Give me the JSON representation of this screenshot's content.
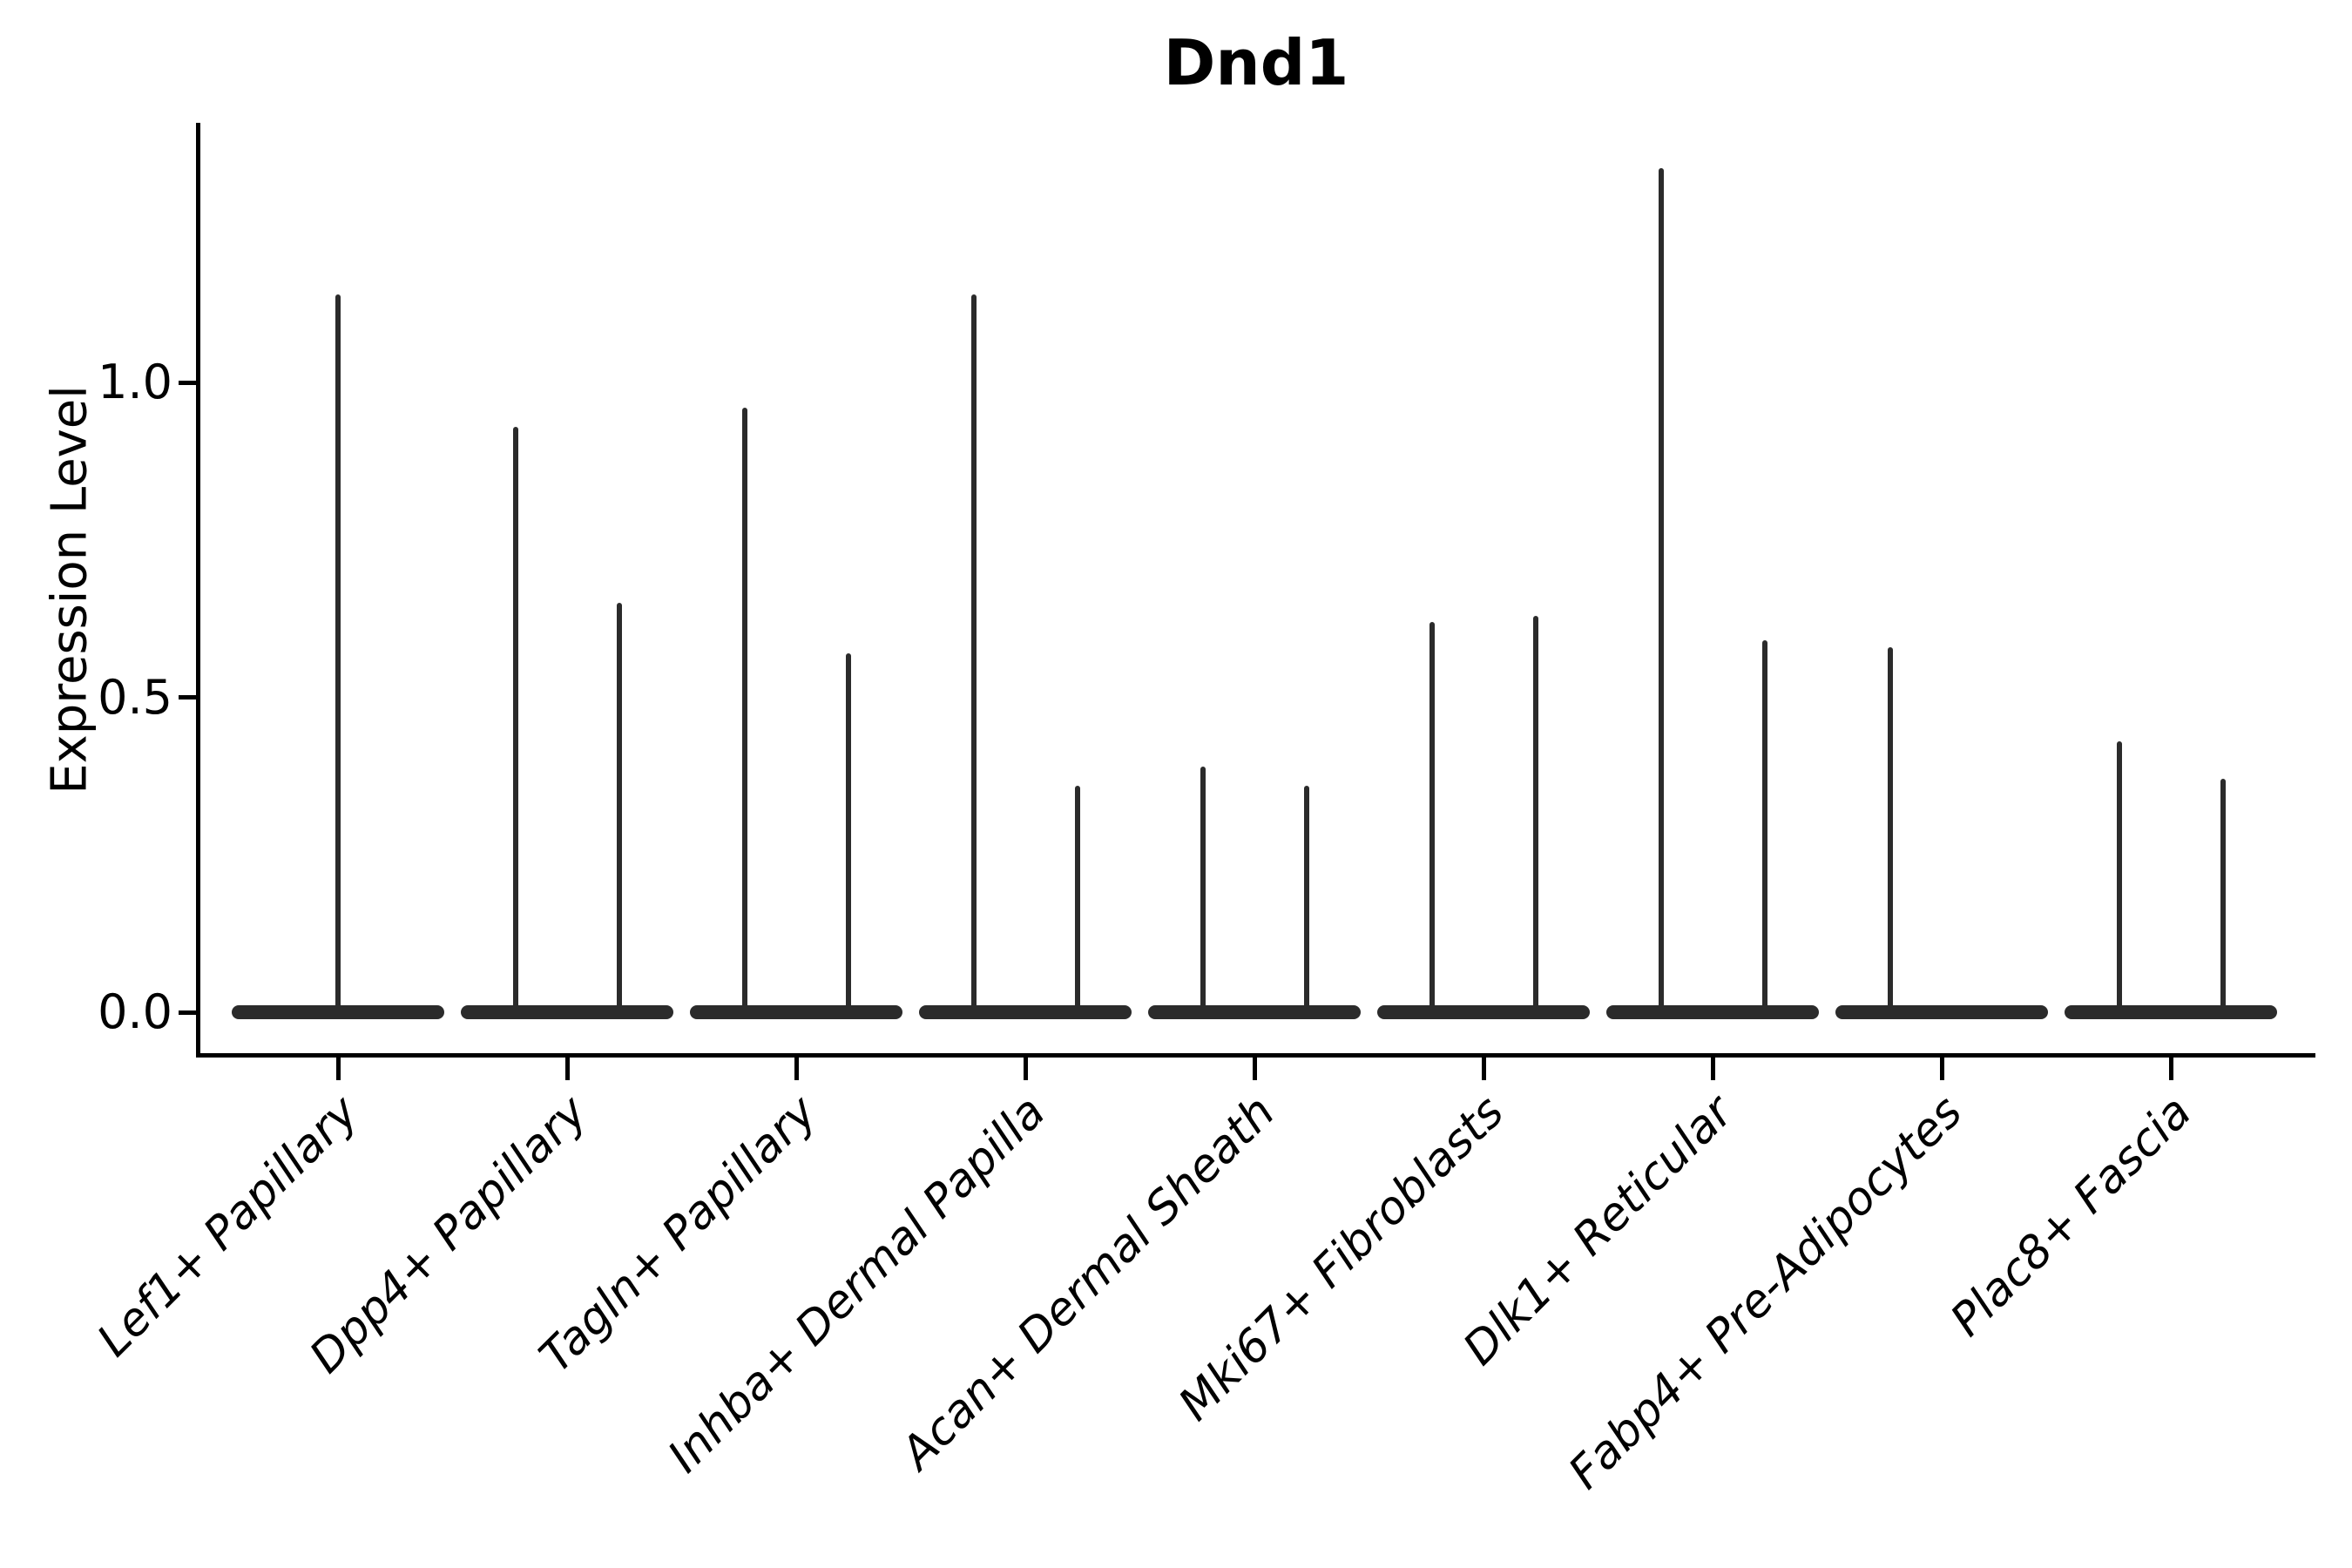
{
  "figure": {
    "title": "Dnd1",
    "background_color": "#ffffff",
    "axis_color": "#000000",
    "violin_color": "#2b2b2b"
  },
  "chart_data": {
    "type": "violin",
    "title": "Dnd1",
    "xlabel": "",
    "ylabel": "Expression Level",
    "ylim": [
      -0.07,
      1.41
    ],
    "yticks": [
      {
        "label": "0.0",
        "value": 0.0
      },
      {
        "label": "0.5",
        "value": 0.5
      },
      {
        "label": "1.0",
        "value": 1.0
      }
    ],
    "grid": false,
    "legend": null,
    "categories": [
      "Lef1+ Papillary",
      "Dpp4+ Papillary",
      "Tagln+ Papillary",
      "Inhba+ Dermal Papilla",
      "Acan+ Dermal Sheath",
      "Mki67+ Fibroblasts",
      "Dlk1+ Reticular",
      "Fabp4+ Pre-Adipocytes",
      "Plac8+ Fascia"
    ],
    "groups": [
      {
        "label": "Lef1+ Papillary",
        "spikes": [
          {
            "position": "center",
            "max": 1.14
          }
        ]
      },
      {
        "label": "Dpp4+ Papillary",
        "spikes": [
          {
            "position": "left",
            "max": 0.93
          },
          {
            "position": "right",
            "max": 0.65
          }
        ]
      },
      {
        "label": "Tagln+ Papillary",
        "spikes": [
          {
            "position": "left",
            "max": 0.96
          },
          {
            "position": "right",
            "max": 0.57
          }
        ]
      },
      {
        "label": "Inhba+ Dermal Papilla",
        "spikes": [
          {
            "position": "left",
            "max": 1.14
          },
          {
            "position": "right",
            "max": 0.36
          }
        ]
      },
      {
        "label": "Acan+ Dermal Sheath",
        "spikes": [
          {
            "position": "left",
            "max": 0.39
          },
          {
            "position": "right",
            "max": 0.36
          }
        ]
      },
      {
        "label": "Mki67+ Fibroblasts",
        "spikes": [
          {
            "position": "left",
            "max": 0.62
          },
          {
            "position": "right",
            "max": 0.63
          }
        ]
      },
      {
        "label": "Dlk1+ Reticular",
        "spikes": [
          {
            "position": "left",
            "max": 1.34
          },
          {
            "position": "right",
            "max": 0.59
          }
        ]
      },
      {
        "label": "Fabp4+ Pre-Adipocytes",
        "spikes": [
          {
            "position": "left",
            "max": 0.58
          }
        ]
      },
      {
        "label": "Plac8+ Fascia",
        "spikes": [
          {
            "position": "left",
            "max": 0.43
          },
          {
            "position": "right",
            "max": 0.37
          }
        ]
      }
    ],
    "description": "Violin plot of Dnd1 expression per fibroblast subtype; each violin is flat at 0 expression with a thin density spike rising to the maximum expressed value."
  }
}
